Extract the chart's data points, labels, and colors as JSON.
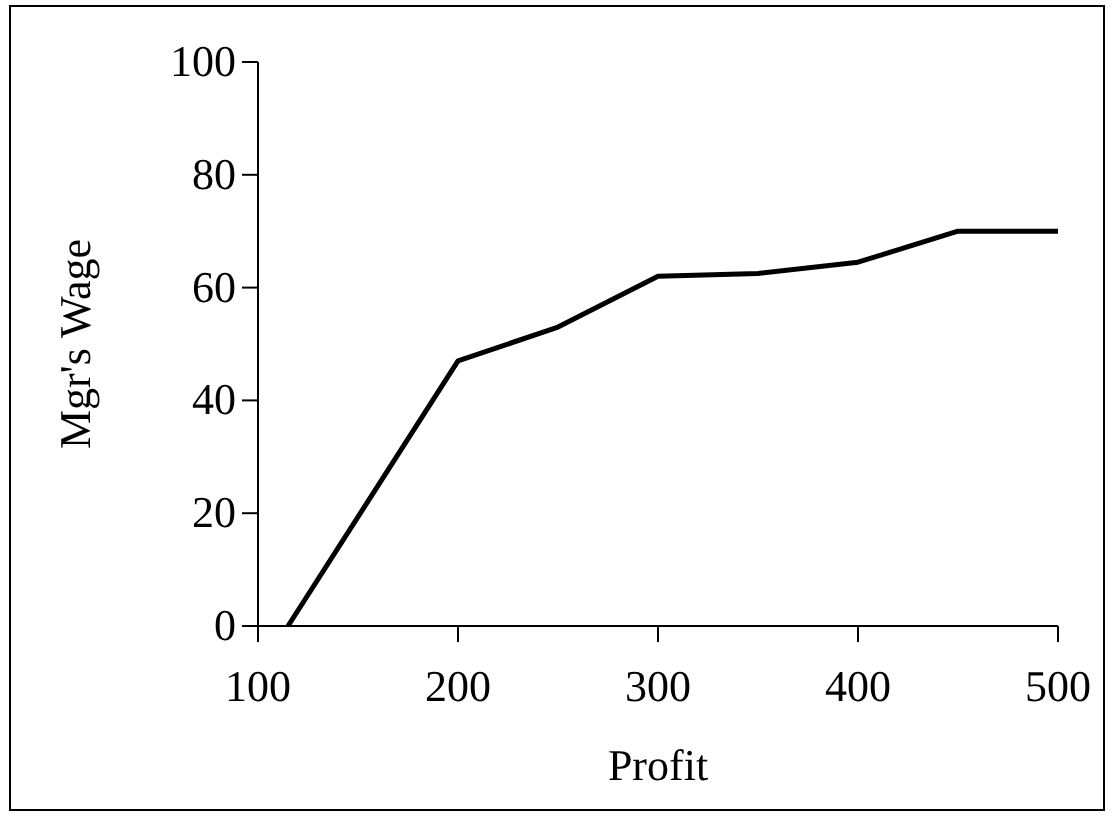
{
  "chart_data": {
    "type": "line",
    "xlabel": "Profit",
    "ylabel": "Mgr's Wage",
    "x": [
      115,
      200,
      250,
      300,
      350,
      400,
      450,
      500
    ],
    "series": [
      {
        "color": "#000000",
        "values": [
          0,
          47,
          53,
          62,
          62.5,
          64.5,
          70,
          70
        ]
      }
    ],
    "xlim": [
      100,
      500
    ],
    "xticks": [
      100,
      200,
      300,
      400,
      500
    ],
    "ylim": [
      0,
      100
    ],
    "yticks": [
      0,
      20,
      40,
      60,
      80,
      100
    ],
    "grid": false,
    "marker": "none",
    "line_style": "solid"
  }
}
